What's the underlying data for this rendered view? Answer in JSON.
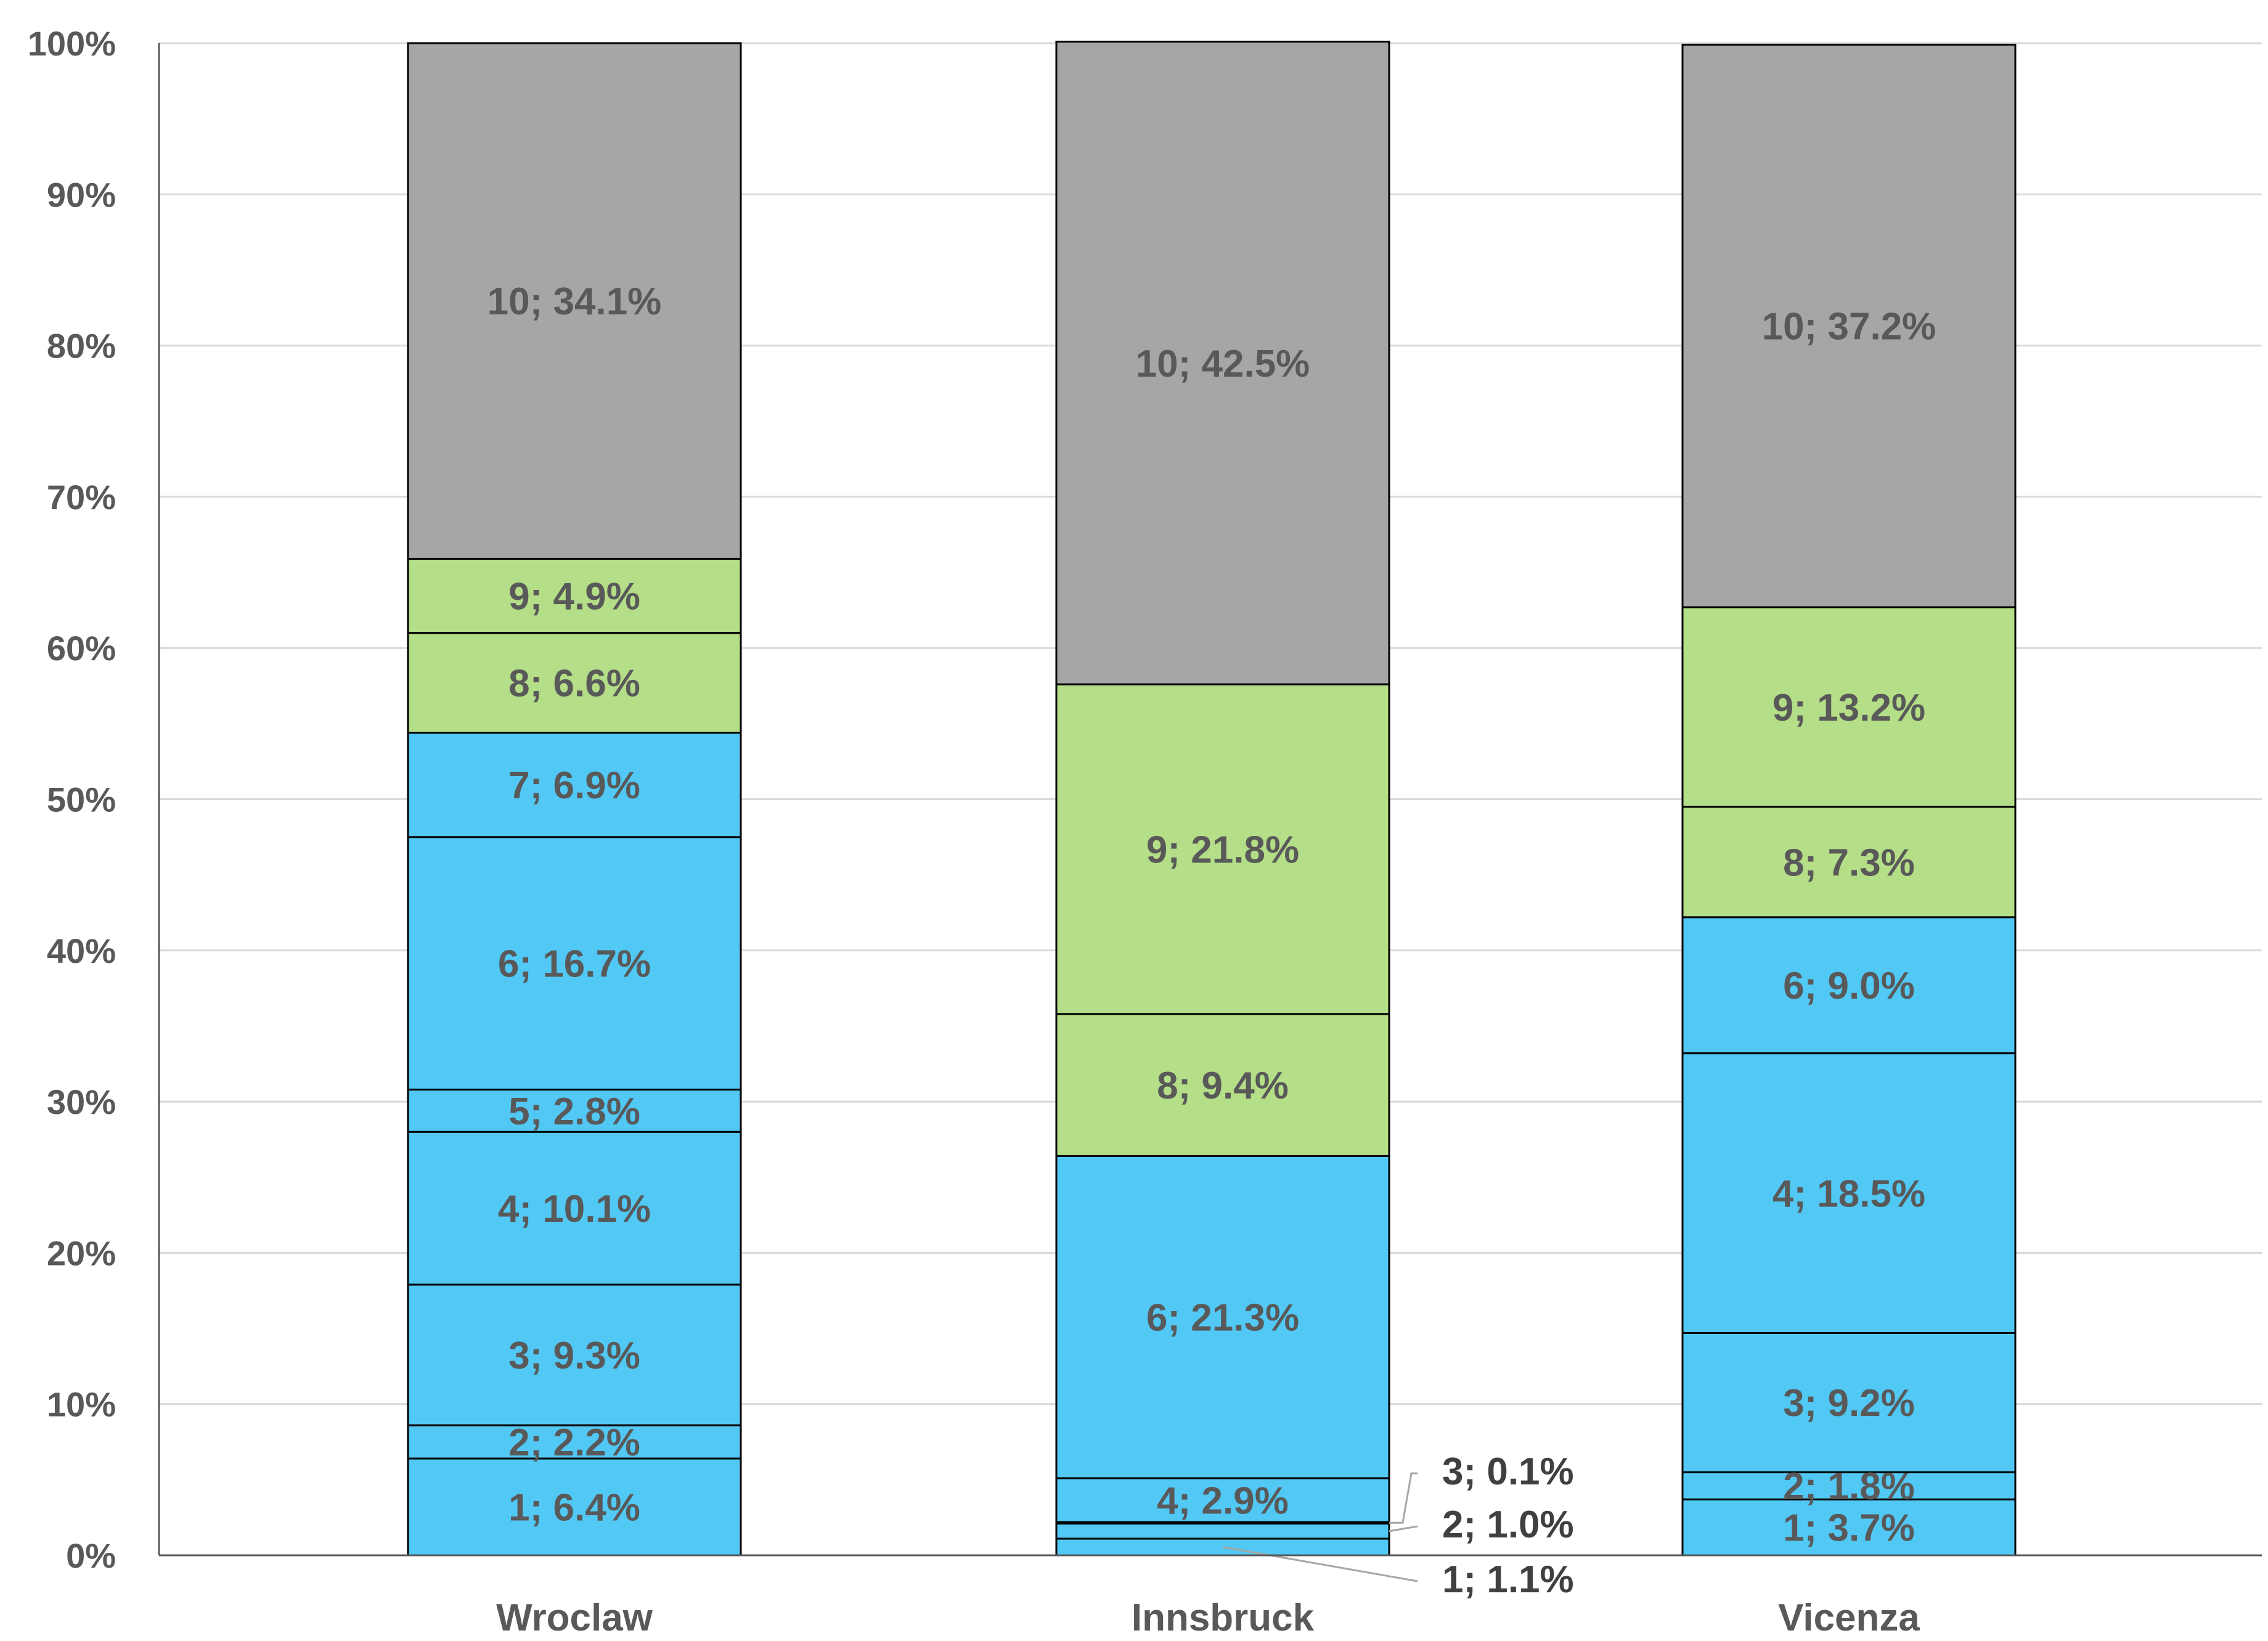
{
  "chart_data": {
    "type": "bar",
    "stacked": true,
    "percent": true,
    "title": "",
    "xlabel": "",
    "ylabel": "",
    "ylim": [
      0,
      100
    ],
    "y_ticks": [
      "0%",
      "10%",
      "20%",
      "30%",
      "40%",
      "50%",
      "60%",
      "70%",
      "80%",
      "90%",
      "100%"
    ],
    "grid": true,
    "categories": [
      "Wroclaw",
      "Innsbruck",
      "Vicenza"
    ],
    "series": [
      {
        "name": "1",
        "values": [
          6.4,
          1.1,
          3.7
        ]
      },
      {
        "name": "2",
        "values": [
          2.2,
          1.0,
          1.8
        ]
      },
      {
        "name": "3",
        "values": [
          9.3,
          0.1,
          9.2
        ]
      },
      {
        "name": "4",
        "values": [
          10.1,
          2.9,
          18.5
        ]
      },
      {
        "name": "5",
        "values": [
          2.8,
          0,
          0
        ]
      },
      {
        "name": "6",
        "values": [
          16.7,
          21.3,
          9.0
        ]
      },
      {
        "name": "7",
        "values": [
          6.9,
          0,
          0
        ]
      },
      {
        "name": "8",
        "values": [
          6.6,
          9.4,
          7.3
        ]
      },
      {
        "name": "9",
        "values": [
          4.9,
          21.8,
          13.2
        ]
      },
      {
        "name": "10",
        "values": [
          34.1,
          42.5,
          37.2
        ]
      }
    ],
    "data_labels": [
      [
        "1; 6.4%",
        "2; 2.2%",
        "3; 9.3%",
        "4; 10.1%",
        "5; 2.8%",
        "6; 16.7%",
        "7; 6.9%",
        "8; 6.6%",
        "9; 4.9%",
        "10; 34.1%"
      ],
      [
        "1; 1.1%",
        "2; 1.0%",
        "3; 0.1%",
        "4; 2.9%",
        "",
        "6; 21.3%",
        "",
        "8; 9.4%",
        "9; 21.8%",
        "10; 42.5%"
      ],
      [
        "1; 3.7%",
        "2; 1.8%",
        "3; 9.2%",
        "4; 18.5%",
        "",
        "6; 9.0%",
        "",
        "8; 7.3%",
        "9; 13.2%",
        "10; 37.2%"
      ]
    ],
    "colors": {
      "low": "#52C8F5",
      "mid": "#B4DE87",
      "high": "#A6A6A6",
      "outline": "#000000",
      "grid": "#D9D9D9",
      "axis": "#595959",
      "text": "#595959"
    },
    "color_groups": [
      "low",
      "low",
      "low",
      "low",
      "low",
      "low",
      "low",
      "mid",
      "mid",
      "high"
    ]
  }
}
